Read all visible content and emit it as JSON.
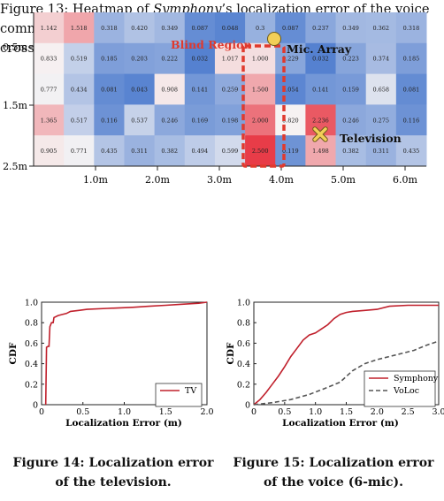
{
  "figure13": {
    "caption_prefix": "Figure 13: Heatmap of ",
    "caption_italic": "Symphony",
    "caption_suffix": "’s localization error of the voice commands in the living room. The yellow circle and the yellow cross denote the array and the television.",
    "y_ticks": [
      "0.5m",
      "1.5m",
      "2.5m"
    ],
    "x_ticks": [
      "1.0m",
      "2.0m",
      "3.0m",
      "4.0m",
      "5.0m",
      "6.0m"
    ],
    "annotations": {
      "blind_region": "Blind Region",
      "mic_array": "Mic. Array",
      "television": "Television"
    },
    "colors": {
      "blind_region": "#e03a2e",
      "marker": "#f2cf57"
    },
    "cells": [
      [
        "1.142",
        "1.518",
        "0.318",
        "0.420",
        "0.349",
        "0.087",
        "0.048",
        "0.3",
        "0.087",
        "0.237",
        "0.349",
        "0.362",
        "0.318"
      ],
      [
        "0.833",
        "0.519",
        "0.185",
        "0.203",
        "0.222",
        "0.032",
        "1.017",
        "1.000",
        "0.229",
        "0.032",
        "0.223",
        "0.374",
        "0.185"
      ],
      [
        "0.777",
        "0.434",
        "0.081",
        "0.043",
        "0.908",
        "0.141",
        "0.259",
        "1.500",
        "0.054",
        "0.141",
        "0.159",
        "0.658",
        "0.081"
      ],
      [
        "1.365",
        "0.517",
        "0.116",
        "0.537",
        "0.246",
        "0.169",
        "0.198",
        "2.000",
        "0.820",
        "2.236",
        "0.246",
        "0.275",
        "0.116"
      ],
      [
        "0.905",
        "0.771",
        "0.435",
        "0.311",
        "0.382",
        "0.494",
        "0.599",
        "2.500",
        "0.119",
        "1.498",
        "0.382",
        "0.311",
        "0.435"
      ]
    ]
  },
  "figure14": {
    "caption_line1": "Figure 14: Localization error",
    "caption_line2": "of the television.",
    "chart_data": {
      "type": "line",
      "xlabel": "Localization Error (m)",
      "ylabel": "CDF",
      "xlim": [
        0,
        2.0
      ],
      "ylim": [
        0,
        1.0
      ],
      "x_ticks": [
        "0",
        "0.5",
        "1.0",
        "1.5",
        "2.0"
      ],
      "y_ticks": [
        "0",
        "0.2",
        "0.4",
        "0.6",
        "0.8",
        "1.0"
      ],
      "legend_position": "right",
      "series": [
        {
          "name": "TV",
          "color": "#c0202c",
          "dash": "solid",
          "points": [
            [
              0.05,
              0
            ],
            [
              0.06,
              0.56
            ],
            [
              0.08,
              0.57
            ],
            [
              0.09,
              0.57
            ],
            [
              0.1,
              0.76
            ],
            [
              0.12,
              0.8
            ],
            [
              0.14,
              0.8
            ],
            [
              0.15,
              0.85
            ],
            [
              0.2,
              0.87
            ],
            [
              0.25,
              0.88
            ],
            [
              0.3,
              0.89
            ],
            [
              0.35,
              0.91
            ],
            [
              0.45,
              0.92
            ],
            [
              0.55,
              0.93
            ],
            [
              0.8,
              0.94
            ],
            [
              1.1,
              0.95
            ],
            [
              1.3,
              0.96
            ],
            [
              1.5,
              0.97
            ],
            [
              1.7,
              0.98
            ],
            [
              1.9,
              0.99
            ],
            [
              2.0,
              1.0
            ]
          ]
        }
      ]
    }
  },
  "figure15": {
    "caption_line1": "Figure 15: Localization error",
    "caption_line2": "of the voice (6-mic).",
    "chart_data": {
      "type": "line",
      "xlabel": "Localization Error (m)",
      "ylabel": "CDF",
      "xlim": [
        0,
        3.0
      ],
      "ylim": [
        0,
        1.0
      ],
      "x_ticks": [
        "0",
        "0.5",
        "1.0",
        "1.5",
        "2.0",
        "2.5",
        "3.0"
      ],
      "y_ticks": [
        "0",
        "0.2",
        "0.4",
        "0.6",
        "0.8",
        "1.0"
      ],
      "legend_position": "right",
      "series": [
        {
          "name": "Symphony",
          "color": "#c0202c",
          "dash": "solid",
          "points": [
            [
              0,
              0
            ],
            [
              0.1,
              0.05
            ],
            [
              0.2,
              0.12
            ],
            [
              0.3,
              0.2
            ],
            [
              0.4,
              0.28
            ],
            [
              0.5,
              0.37
            ],
            [
              0.6,
              0.47
            ],
            [
              0.7,
              0.55
            ],
            [
              0.8,
              0.63
            ],
            [
              0.9,
              0.68
            ],
            [
              1.0,
              0.7
            ],
            [
              1.1,
              0.74
            ],
            [
              1.2,
              0.78
            ],
            [
              1.3,
              0.84
            ],
            [
              1.4,
              0.88
            ],
            [
              1.5,
              0.9
            ],
            [
              1.6,
              0.91
            ],
            [
              1.8,
              0.92
            ],
            [
              2.0,
              0.93
            ],
            [
              2.2,
              0.96
            ],
            [
              2.5,
              0.97
            ],
            [
              3.0,
              0.97
            ]
          ]
        },
        {
          "name": "VoLoc",
          "color": "#555555",
          "dash": "dashed",
          "points": [
            [
              0,
              0
            ],
            [
              0.3,
              0.02
            ],
            [
              0.6,
              0.05
            ],
            [
              0.9,
              0.1
            ],
            [
              1.2,
              0.17
            ],
            [
              1.4,
              0.22
            ],
            [
              1.6,
              0.33
            ],
            [
              1.8,
              0.4
            ],
            [
              2.0,
              0.44
            ],
            [
              2.2,
              0.47
            ],
            [
              2.4,
              0.5
            ],
            [
              2.6,
              0.53
            ],
            [
              2.8,
              0.58
            ],
            [
              3.0,
              0.62
            ]
          ]
        }
      ]
    }
  }
}
